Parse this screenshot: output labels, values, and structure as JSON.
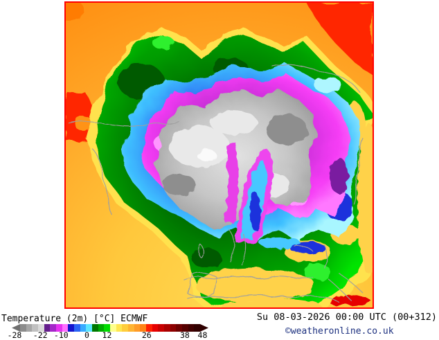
{
  "map": {
    "alt": "ECMWF 2m temperature field, northern hemisphere polar stereographic view",
    "border_color": "#ff0000",
    "palette": {
      "red": "#ff2800",
      "red_dark": "#e60000",
      "orange": "#ff9318",
      "orange_hot": "#ff7a00",
      "yellow": "#ffd24a",
      "transition_yellow": "#ffe24e",
      "green_dark": "#005a00",
      "green_bright": "#2ef02e",
      "cyan": "#46c8ff",
      "cyan_light": "#aef6ff",
      "blue": "#1c32dc",
      "magenta": "#ee44ee",
      "magenta_tongue": "#e840e8",
      "magenta_light": "#ff96ff",
      "purple_dark": "#7a1ea0",
      "gray_light": "#e9e9e9",
      "gray_dark": "#8e8e8e",
      "white_cold": "#fafafa",
      "coast": "#a0a0a0"
    }
  },
  "legend": {
    "left_arrow_color": "#6f6f6f",
    "right_arrow_color": "#2e0000",
    "colors": [
      "#8c8c8c",
      "#a6a6a6",
      "#c0c0c0",
      "#dadada",
      "#641e8c",
      "#a428c8",
      "#e632f0",
      "#ff6eff",
      "#1414cd",
      "#2a64f5",
      "#37aaff",
      "#5ae6ff",
      "#007800",
      "#00aa00",
      "#00dc00",
      "#ffff8c",
      "#ffe650",
      "#ffcd3c",
      "#ffb432",
      "#ff9b28",
      "#ff8214",
      "#ff1e00",
      "#e60000",
      "#c80000",
      "#aa0000",
      "#8c0000",
      "#6e0000",
      "#550000",
      "#410000",
      "#320000"
    ],
    "ticks": [
      {
        "label": "-28",
        "pos": 1.4
      },
      {
        "label": "-22",
        "pos": 14.5
      },
      {
        "label": "-10",
        "pos": 25.1
      },
      {
        "label": "0",
        "pos": 38.2
      },
      {
        "label": "12",
        "pos": 48.4
      },
      {
        "label": "26",
        "pos": 68.6
      },
      {
        "label": "38",
        "pos": 88.0
      },
      {
        "label": "48",
        "pos": 97.0
      }
    ]
  },
  "footer": {
    "title": "Temperature (2m) [°C] ECMWF",
    "datetime": "Su 08-03-2026 00:00 UTC (00+312)",
    "copyright": "©weatheronline.co.uk"
  },
  "chart_data": {
    "type": "heatmap",
    "title": "Temperature (2m) [°C] ECMWF",
    "valid_time": "Su 08-03-2026 00:00 UTC (00+312)",
    "units": "°C",
    "colorbar_ticks": [
      -28,
      -22,
      -10,
      0,
      12,
      26,
      38,
      48
    ],
    "legend_position": "bottom",
    "projection": "north-polar-stereographic",
    "qualitative_field": [
      {
        "region": "arctic center (Greenland/Canada/Siberia)",
        "value_c": "below -22, gray"
      },
      {
        "region": "subarctic ring",
        "value_c": "-22 to -10, magenta"
      },
      {
        "region": "boreal ring",
        "value_c": "-10 to 0, blue/cyan"
      },
      {
        "region": "temperate ring incl. Europe/Asia",
        "value_c": "0 to 12, green"
      },
      {
        "region": "subtropics / map edges",
        "value_c": "12 to 26, yellow-orange"
      },
      {
        "region": "hot spots: top-right corner, left mid-edge, Arabia bottom-right",
        "value_c": "26+, red"
      }
    ]
  }
}
